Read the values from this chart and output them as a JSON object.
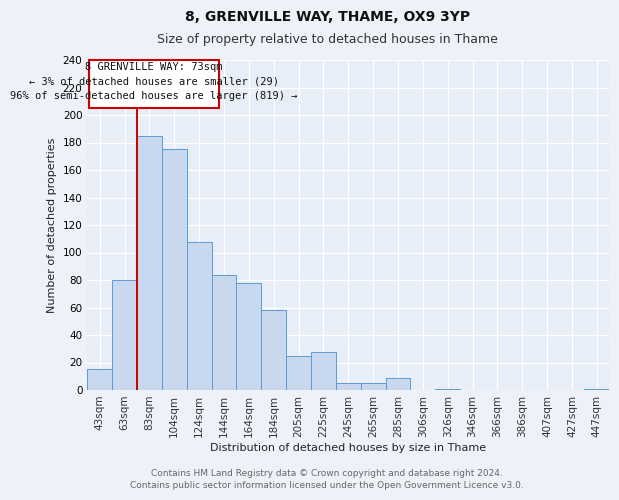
{
  "title": "8, GRENVILLE WAY, THAME, OX9 3YP",
  "subtitle": "Size of property relative to detached houses in Thame",
  "xlabel": "Distribution of detached houses by size in Thame",
  "ylabel": "Number of detached properties",
  "footer_line1": "Contains HM Land Registry data © Crown copyright and database right 2024.",
  "footer_line2": "Contains public sector information licensed under the Open Government Licence v3.0.",
  "bar_labels": [
    "43sqm",
    "63sqm",
    "83sqm",
    "104sqm",
    "124sqm",
    "144sqm",
    "164sqm",
    "184sqm",
    "205sqm",
    "225sqm",
    "245sqm",
    "265sqm",
    "285sqm",
    "306sqm",
    "326sqm",
    "346sqm",
    "366sqm",
    "386sqm",
    "407sqm",
    "427sqm",
    "447sqm"
  ],
  "bar_values": [
    15,
    80,
    185,
    175,
    108,
    84,
    78,
    58,
    25,
    28,
    5,
    5,
    9,
    0,
    1,
    0,
    0,
    0,
    0,
    0,
    1
  ],
  "bar_color": "#c8d8ee",
  "bar_edge_color": "#5b9bd5",
  "ylim": [
    0,
    240
  ],
  "yticks": [
    0,
    20,
    40,
    60,
    80,
    100,
    120,
    140,
    160,
    180,
    200,
    220,
    240
  ],
  "marker_color": "#cc0000",
  "annotation_line1": "8 GRENVILLE WAY: 73sqm",
  "annotation_line2": "← 3% of detached houses are smaller (29)",
  "annotation_line3": "96% of semi-detached houses are larger (819) →",
  "background_color": "#eef2f8",
  "plot_bg_color": "#e8eef8",
  "title_fontsize": 10,
  "subtitle_fontsize": 9,
  "axis_label_fontsize": 8,
  "tick_fontsize": 7.5,
  "footer_fontsize": 6.5
}
